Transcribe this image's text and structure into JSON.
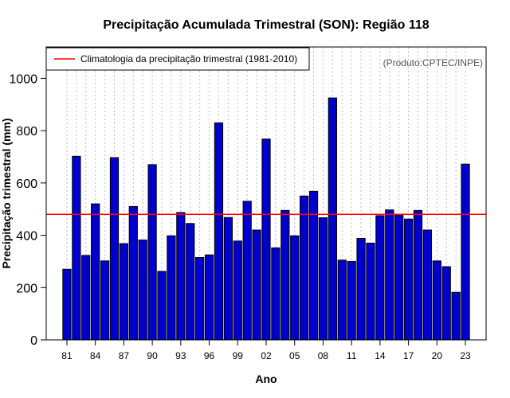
{
  "chart_data": {
    "type": "bar",
    "title": "Precipitação Acumulada Trimestral (SON): Região 118",
    "xlabel": "Ano",
    "ylabel": "Precipitação trimestral (mm)",
    "credit": "(Produto:CPTEC/INPE)",
    "ylim": [
      0,
      1120
    ],
    "yticks": [
      0,
      200,
      400,
      600,
      800,
      1000
    ],
    "xtick_labels": [
      "81",
      "84",
      "87",
      "90",
      "93",
      "96",
      "99",
      "02",
      "05",
      "08",
      "11",
      "14",
      "17",
      "20",
      "23"
    ],
    "categories": [
      "1981",
      "1982",
      "1983",
      "1984",
      "1985",
      "1986",
      "1987",
      "1988",
      "1989",
      "1990",
      "1991",
      "1992",
      "1993",
      "1994",
      "1995",
      "1996",
      "1997",
      "1998",
      "1999",
      "2000",
      "2001",
      "2002",
      "2003",
      "2004",
      "2005",
      "2006",
      "2007",
      "2008",
      "2009",
      "2010",
      "2011",
      "2012",
      "2013",
      "2014",
      "2015",
      "2016",
      "2017",
      "2018",
      "2019",
      "2020",
      "2021",
      "2022",
      "2023"
    ],
    "values": [
      270,
      702,
      323,
      520,
      302,
      697,
      368,
      510,
      382,
      670,
      262,
      398,
      487,
      445,
      315,
      325,
      830,
      468,
      378,
      530,
      420,
      768,
      352,
      495,
      398,
      550,
      568,
      467,
      925,
      305,
      300,
      388,
      370,
      475,
      497,
      478,
      462,
      495,
      420,
      302,
      280,
      182,
      672
    ],
    "climatology": {
      "label": "Climatologia da precipitação trimestral (1981-2010)",
      "value": 480
    },
    "legend_position": "top-left",
    "colors": {
      "bar_fill": "#0000CD",
      "bar_stroke": "#000000",
      "climatology_line": "#FF0000",
      "grid": "#BEBEBE"
    }
  }
}
